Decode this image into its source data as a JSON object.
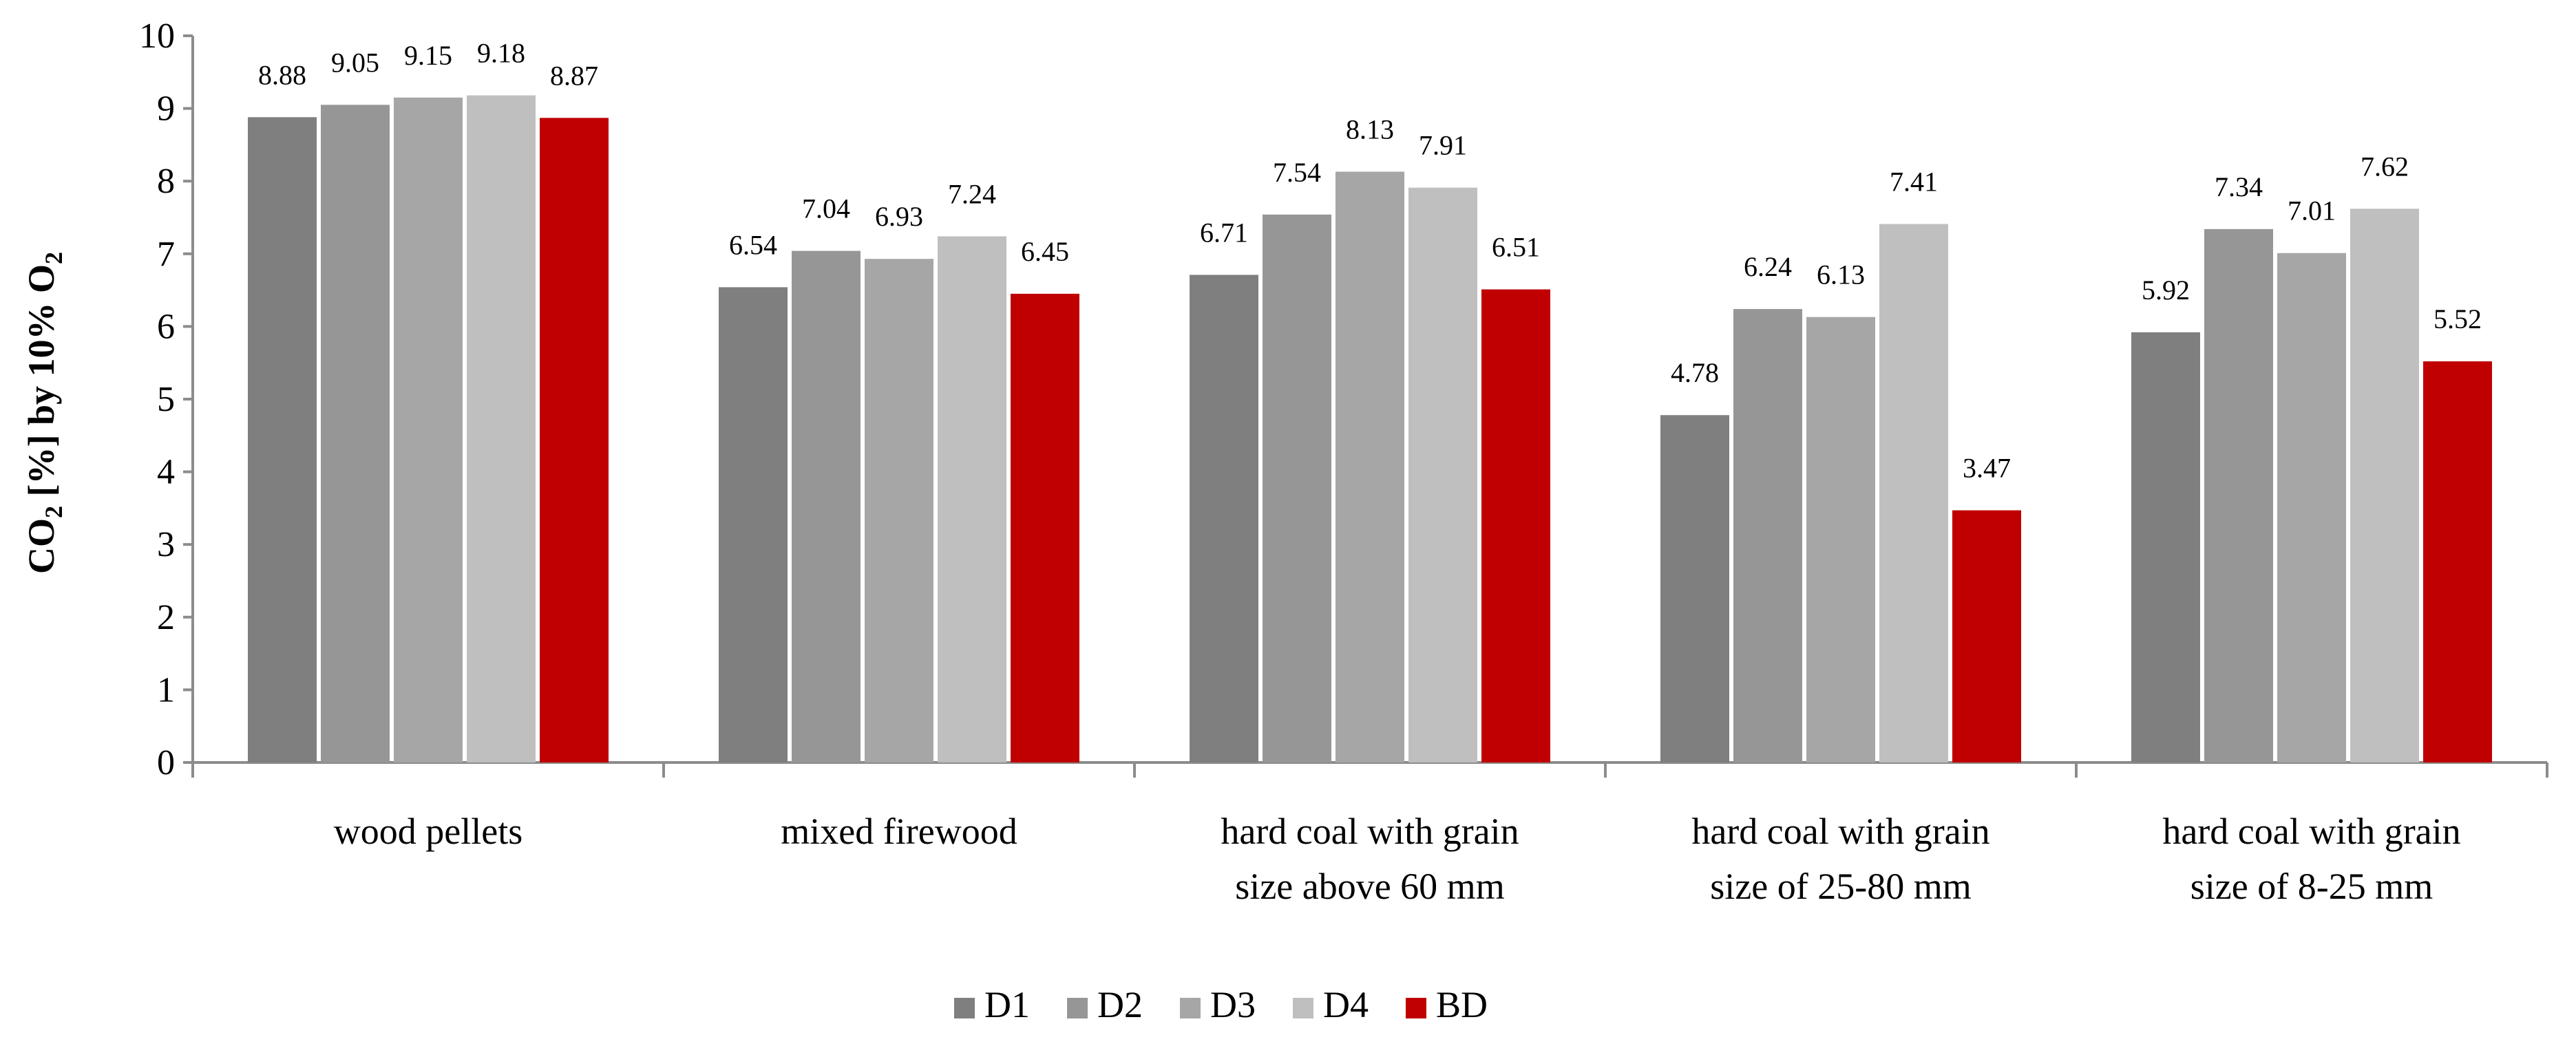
{
  "chart_data": {
    "type": "bar",
    "ylabel": "CO2 [%] by 10% O2",
    "ylabel_parts": {
      "main": "CO",
      "sub1": "2",
      "unit": "[%]",
      "by": "by 10% O",
      "sub2": "2"
    },
    "ylim": [
      0,
      10
    ],
    "yticks": [
      "0",
      "1",
      "2",
      "3",
      "4",
      "5",
      "6",
      "7",
      "8",
      "9",
      "10"
    ],
    "categories": [
      [
        "wood pellets"
      ],
      [
        "mixed firewood"
      ],
      [
        "hard coal with grain",
        "size above 60 mm"
      ],
      [
        "hard coal with grain",
        "size of 25-80 mm"
      ],
      [
        "hard coal with grain",
        "size of 8-25 mm"
      ]
    ],
    "series": [
      {
        "name": "D1",
        "color": "#7f7f7f",
        "values": [
          8.88,
          6.54,
          6.71,
          4.78,
          5.92
        ]
      },
      {
        "name": "D2",
        "color": "#969696",
        "values": [
          9.05,
          7.04,
          7.54,
          6.24,
          7.34
        ]
      },
      {
        "name": "D3",
        "color": "#a6a6a6",
        "values": [
          9.15,
          6.93,
          8.13,
          6.13,
          7.01
        ]
      },
      {
        "name": "D4",
        "color": "#bfbfbf",
        "values": [
          9.18,
          7.24,
          7.91,
          7.41,
          7.62
        ]
      },
      {
        "name": "BD",
        "color": "#c00000",
        "values": [
          8.87,
          6.45,
          6.51,
          3.47,
          5.52
        ]
      }
    ],
    "legend_position": "bottom"
  }
}
